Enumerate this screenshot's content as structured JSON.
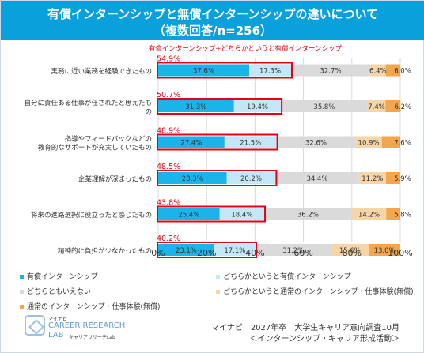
{
  "header": {
    "title_line1": "有償インターンシップと無償インターンシップの違いについて",
    "title_line2": "（複数回答/n=256）"
  },
  "chart_data": {
    "type": "bar",
    "stacked": true,
    "orientation": "horizontal",
    "categories": [
      "実務に近い業務を経験できたもの",
      "自分に責任ある仕事が任されたと思えたもの",
      "指導やフィードバックなどの教育的なサポートが充実していたもの",
      "企業理解が深まったもの",
      "将来の進路選択に役立ったと感じたもの",
      "精神的に負担が少なかったもの"
    ],
    "category_lines": [
      [
        "実務に近い業務を経験できたもの"
      ],
      [
        "自分に責任ある仕事が任されたと思えたも",
        "の"
      ],
      [
        "指導やフィードバックなどの",
        "教育的なサポートが充実していたもの"
      ],
      [
        "企業理解が深まったもの"
      ],
      [
        "将来の進路選択に役立ったと感じたもの"
      ],
      [
        "精神的に負担が少なかったもの"
      ]
    ],
    "series": [
      {
        "name": "有償インターンシップ",
        "color": "#1ab3ea",
        "values": [
          37.6,
          31.3,
          27.4,
          28.3,
          25.4,
          23.1
        ],
        "labels": [
          "37.6%",
          "31.3%",
          "27.4%",
          "28.3%",
          "25.4%",
          "23.1%"
        ]
      },
      {
        "name": "どちらかというと有償インターンシップ",
        "color": "#c5e6f6",
        "values": [
          17.3,
          19.4,
          21.5,
          20.2,
          18.4,
          17.1
        ],
        "labels": [
          "17.3%",
          "19.4%",
          "21.5%",
          "20.2%",
          "18.4%",
          "17.1%"
        ]
      },
      {
        "name": "どちらともいえない",
        "color": "#dadada",
        "values": [
          32.7,
          35.8,
          32.6,
          34.4,
          36.2,
          31.2
        ],
        "labels": [
          "32.7%",
          "35.8%",
          "32.6%",
          "34.4%",
          "36.2%",
          "31.2%"
        ]
      },
      {
        "name": "どちらかというと通常のインターンシップ・仕事体験(無償)",
        "color": "#f6d6a8",
        "values": [
          6.4,
          7.4,
          10.9,
          11.2,
          14.2,
          15.6
        ],
        "labels": [
          "6.4%",
          "7.4%",
          "10.9%",
          "11.2%",
          "14.2%",
          "15.6%"
        ]
      },
      {
        "name": "通常のインターンシップ・仕事体験(無償)",
        "color": "#f2a64d",
        "values": [
          6.0,
          6.2,
          7.6,
          5.9,
          5.8,
          13.0
        ],
        "labels": [
          "6.0%",
          "6.2%",
          "7.6%",
          "5.9%",
          "5.8%",
          "13.0%"
        ]
      }
    ],
    "combined": {
      "label": "有償インターンシップ+どちらかというと有償インターンシップ",
      "values": [
        54.9,
        50.7,
        48.9,
        48.5,
        43.8,
        40.2
      ],
      "labels": [
        "54.9%",
        "50.7%",
        "48.9%",
        "48.5%",
        "43.8%",
        "40.2%"
      ],
      "color": "#e60012"
    },
    "xlim": [
      0,
      100
    ],
    "xticks": [
      "0%",
      "20%",
      "40%",
      "60%",
      "80%",
      "100%"
    ],
    "grid": true,
    "legend_position": "bottom"
  },
  "logo": {
    "small": "マイナビ",
    "line1": "CAREER RESEARCH",
    "line2": "LAB",
    "tag": "キャリアリサーチLab"
  },
  "source": {
    "line1": "マイナビ　2027年卒　大学生キャリア意向調査10月",
    "line2": "＜インターンシップ・キャリア形成活動＞"
  }
}
